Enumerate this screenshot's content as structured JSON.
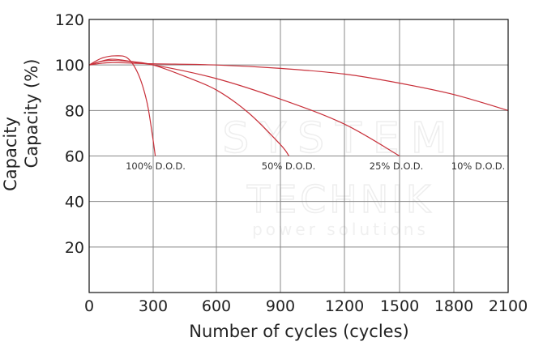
{
  "chart_data": {
    "type": "line",
    "title": "",
    "xlabel": "Number of cycles (cycles)",
    "ylabel": "Capacity (%)",
    "ylabel_overlay": "Capacity",
    "xlim": [
      0,
      2100
    ],
    "ylim": [
      0,
      120
    ],
    "x_ticks": [
      0,
      300,
      600,
      900,
      1200,
      1500,
      1800,
      2100
    ],
    "y_ticks": [
      20,
      40,
      60,
      80,
      100,
      120
    ],
    "grid": true,
    "line_color": "#c8303a",
    "series": [
      {
        "name": "100% D.O.D.",
        "points": [
          [
            0,
            100
          ],
          [
            60,
            103
          ],
          [
            120,
            104
          ],
          [
            180,
            103
          ],
          [
            230,
            96
          ],
          [
            270,
            84
          ],
          [
            295,
            70
          ],
          [
            310,
            60
          ]
        ]
      },
      {
        "name": "50% D.O.D.",
        "points": [
          [
            0,
            100
          ],
          [
            100,
            102.5
          ],
          [
            200,
            101.5
          ],
          [
            300,
            100
          ],
          [
            450,
            95
          ],
          [
            600,
            89
          ],
          [
            750,
            79
          ],
          [
            900,
            65
          ],
          [
            940,
            60
          ]
        ]
      },
      {
        "name": "25% D.O.D.",
        "points": [
          [
            0,
            100
          ],
          [
            100,
            102
          ],
          [
            300,
            100
          ],
          [
            600,
            94
          ],
          [
            900,
            85
          ],
          [
            1200,
            74
          ],
          [
            1500,
            60
          ]
        ]
      },
      {
        "name": "10% D.O.D.",
        "points": [
          [
            0,
            100
          ],
          [
            100,
            101
          ],
          [
            300,
            100.5
          ],
          [
            600,
            100
          ],
          [
            900,
            98.5
          ],
          [
            1200,
            96
          ],
          [
            1500,
            92
          ],
          [
            1800,
            87
          ],
          [
            2100,
            80
          ]
        ]
      }
    ]
  },
  "watermark": {
    "line1": "SYSTEM",
    "line2": "TECHNIK",
    "line3": "power solutions"
  }
}
